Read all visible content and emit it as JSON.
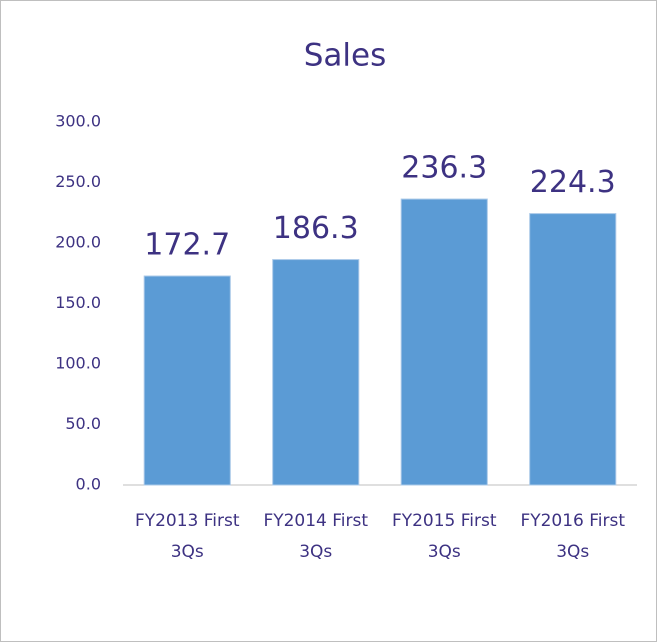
{
  "chart_data": {
    "type": "bar",
    "title": "Sales",
    "categories": [
      "FY2013 First 3Qs",
      "FY2014 First 3Qs",
      "FY2015 First 3Qs",
      "FY2016 First 3Qs"
    ],
    "values": [
      172.7,
      186.3,
      236.3,
      224.3
    ],
    "color": "#5b9bd5",
    "ylim": [
      0,
      300
    ],
    "yticks": [
      {
        "value": 0,
        "label": "0.0"
      },
      {
        "value": 50,
        "label": "50.0"
      },
      {
        "value": 100,
        "label": "100.0"
      },
      {
        "value": 150,
        "label": "150.0"
      },
      {
        "value": 200,
        "label": "200.0"
      },
      {
        "value": 250,
        "label": "250.0"
      },
      {
        "value": 300,
        "label": "300.0"
      }
    ],
    "grid": false
  }
}
